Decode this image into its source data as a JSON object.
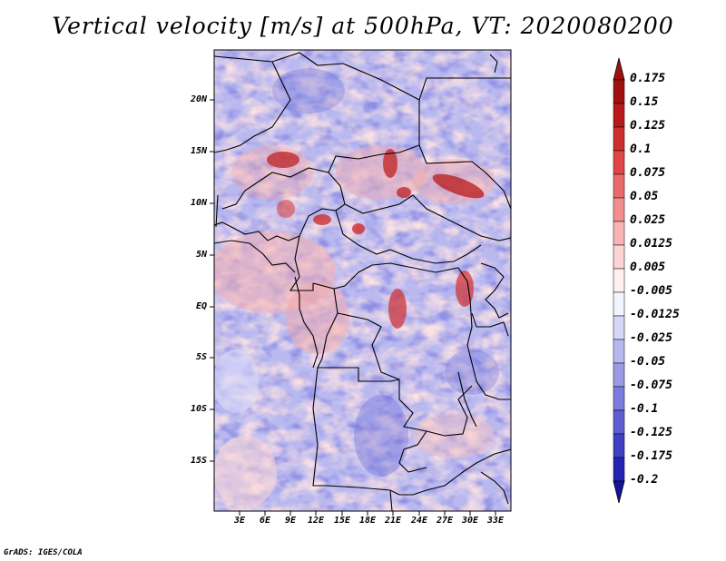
{
  "title": "Vertical velocity [m/s] at 500hPa, VT: 2020080200",
  "credit": "GrADS: IGES/COLA",
  "map": {
    "lat_labels": [
      "20N",
      "15N",
      "10N",
      "5N",
      "EQ",
      "5S",
      "10S",
      "15S"
    ],
    "lon_labels": [
      "3E",
      "6E",
      "9E",
      "12E",
      "15E",
      "18E",
      "21E",
      "24E",
      "27E",
      "30E",
      "33E"
    ]
  },
  "colorbar": {
    "labels": [
      "0.175",
      "0.15",
      "0.125",
      "0.1",
      "0.075",
      "0.05",
      "0.025",
      "0.0125",
      "0.005",
      "-0.005",
      "-0.0125",
      "-0.025",
      "-0.05",
      "-0.075",
      "-0.1",
      "-0.125",
      "-0.175",
      "-0.2"
    ],
    "colors": [
      "#a01010",
      "#b81a1a",
      "#cf2e2e",
      "#e04646",
      "#ea6a6a",
      "#f28e8e",
      "#f8b4b4",
      "#fcd4d4",
      "#fff0f0",
      "#f4f4ff",
      "#d6d6f8",
      "#b8b8f0",
      "#9a9ae6",
      "#7c7cdc",
      "#5e5ed0",
      "#4040c2",
      "#2424b2",
      "#14149a"
    ]
  }
}
